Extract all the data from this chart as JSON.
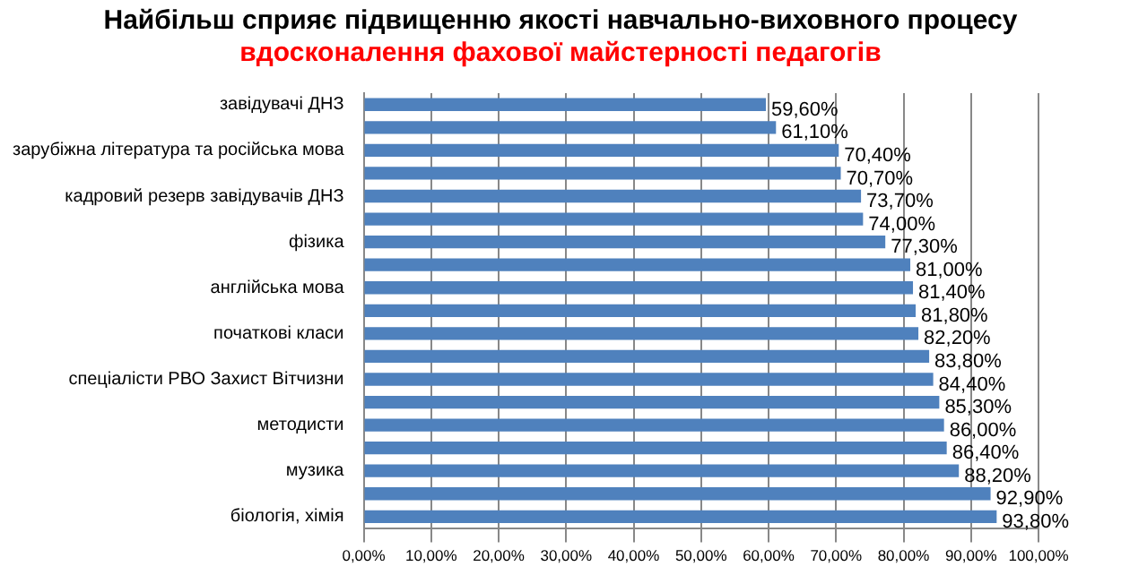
{
  "chart_data": {
    "type": "bar",
    "orientation": "horizontal",
    "title": "Найбільш сприяє підвищенню  якості навчально-виховного процесу",
    "subtitle": "вдосконалення фахової майстерності  педагогів",
    "categories": [
      "завідувачі ДНЗ",
      null,
      "зарубіжна література та російська мова",
      null,
      "кадровий резерв завідувачів ДНЗ",
      null,
      "фізика",
      null,
      "англійська мова",
      null,
      "початкові класи",
      null,
      "спеціалісти РВО Захист Вітчизни",
      null,
      "методисти",
      null,
      "музика",
      null,
      "біологія, хімія"
    ],
    "values": [
      59.6,
      61.1,
      70.4,
      70.7,
      73.7,
      74.0,
      77.3,
      81.0,
      81.4,
      81.8,
      82.2,
      83.8,
      84.4,
      85.3,
      86.0,
      86.4,
      88.2,
      92.9,
      93.8
    ],
    "value_labels": [
      "59,60%",
      "61,10%",
      "70,40%",
      "70,70%",
      "73,70%",
      "74,00%",
      "77,30%",
      "81,00%",
      "81,40%",
      "81,80%",
      "82,20%",
      "83,80%",
      "84,40%",
      "85,30%",
      "86,00%",
      "86,40%",
      "88,20%",
      "92,90%",
      "93,80%"
    ],
    "color": "#4f81bd",
    "xlim": [
      0,
      100
    ],
    "xticks": [
      {
        "value": 0,
        "label": "0,00%"
      },
      {
        "value": 10,
        "label": "10,00%"
      },
      {
        "value": 20,
        "label": "20,00%"
      },
      {
        "value": 30,
        "label": "30,00%"
      },
      {
        "value": 40,
        "label": "40,00%"
      },
      {
        "value": 50,
        "label": "50,00%"
      },
      {
        "value": 60,
        "label": "60,00%"
      },
      {
        "value": 70,
        "label": "70,00%"
      },
      {
        "value": 80,
        "label": "80,00%"
      },
      {
        "value": 90,
        "label": "90,00%"
      },
      {
        "value": 100,
        "label": "100,00%"
      }
    ],
    "grid": "x",
    "legend": false
  }
}
